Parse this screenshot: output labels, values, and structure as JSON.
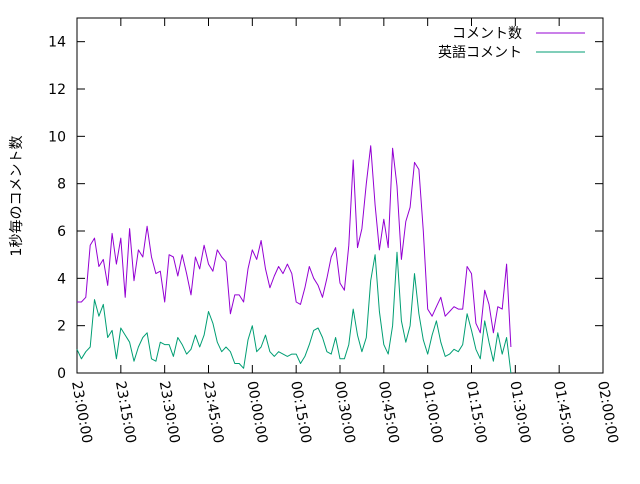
{
  "chart_data": {
    "type": "line",
    "ylabel": "1秒毎のコメント数",
    "xlabel": "",
    "ylim": [
      0,
      15
    ],
    "y_ticks": [
      "0",
      "2",
      "4",
      "6",
      "8",
      "10",
      "12",
      "14"
    ],
    "y_tick_values": [
      0,
      2,
      4,
      6,
      8,
      10,
      12,
      14
    ],
    "x_ticks": [
      "23:00:00",
      "23:15:00",
      "23:30:00",
      "23:45:00",
      "00:00:00",
      "00:15:00",
      "00:30:00",
      "00:45:00",
      "01:00:00",
      "01:15:00",
      "01:30:00",
      "01:45:00",
      "02:00:00"
    ],
    "x_range_minutes": [
      0,
      180
    ],
    "x_minutes_step": 1.5,
    "legend_position": "top-right",
    "grid": false,
    "series": [
      {
        "name": "コメント数",
        "color": "#9400d3",
        "values": [
          3.0,
          3.0,
          3.2,
          5.4,
          5.7,
          4.5,
          4.8,
          3.7,
          5.9,
          4.6,
          5.7,
          3.2,
          6.1,
          3.9,
          5.2,
          4.9,
          6.2,
          4.9,
          4.2,
          4.3,
          3.0,
          5.0,
          4.9,
          4.1,
          5.0,
          4.2,
          3.3,
          4.9,
          4.4,
          5.4,
          4.6,
          4.3,
          5.2,
          4.9,
          4.7,
          2.5,
          3.3,
          3.3,
          3.0,
          4.4,
          5.2,
          4.8,
          5.6,
          4.4,
          3.6,
          4.1,
          4.5,
          4.2,
          4.6,
          4.2,
          3.0,
          2.9,
          3.6,
          4.5,
          4.0,
          3.7,
          3.2,
          4.0,
          4.9,
          5.3,
          3.8,
          3.5,
          5.4,
          9.0,
          5.3,
          6.1,
          8.0,
          9.6,
          7.1,
          5.2,
          6.5,
          5.3,
          9.5,
          7.9,
          4.8,
          6.4,
          7.0,
          8.9,
          8.6,
          6.0,
          2.7,
          2.4,
          2.8,
          3.2,
          2.4,
          2.6,
          2.8,
          2.7,
          2.7,
          4.5,
          4.2,
          2.1,
          1.7,
          3.5,
          2.9,
          1.7,
          2.8,
          2.7,
          4.6,
          1.1
        ]
      },
      {
        "name": "英語コメント",
        "color": "#009e73",
        "values": [
          1.0,
          0.6,
          0.9,
          1.1,
          3.1,
          2.4,
          2.9,
          1.5,
          1.8,
          0.6,
          1.9,
          1.6,
          1.3,
          0.5,
          1.1,
          1.5,
          1.7,
          0.6,
          0.5,
          1.3,
          1.2,
          1.2,
          0.7,
          1.5,
          1.2,
          0.8,
          1.0,
          1.6,
          1.1,
          1.6,
          2.6,
          2.1,
          1.3,
          0.9,
          1.1,
          0.9,
          0.4,
          0.4,
          0.2,
          1.4,
          2.0,
          0.9,
          1.1,
          1.6,
          0.9,
          0.7,
          0.9,
          0.8,
          0.7,
          0.8,
          0.8,
          0.4,
          0.7,
          1.2,
          1.8,
          1.9,
          1.5,
          0.9,
          0.8,
          1.5,
          0.6,
          0.6,
          1.2,
          2.7,
          1.6,
          0.9,
          1.5,
          3.9,
          5.0,
          2.6,
          1.2,
          0.8,
          2.0,
          5.1,
          2.2,
          1.3,
          2.0,
          4.2,
          2.5,
          1.4,
          0.8,
          1.6,
          2.2,
          1.3,
          0.7,
          0.8,
          1.0,
          0.9,
          1.2,
          2.5,
          1.8,
          1.0,
          0.6,
          2.2,
          1.3,
          0.5,
          1.7,
          0.8,
          1.5,
          0.0
        ]
      }
    ]
  }
}
